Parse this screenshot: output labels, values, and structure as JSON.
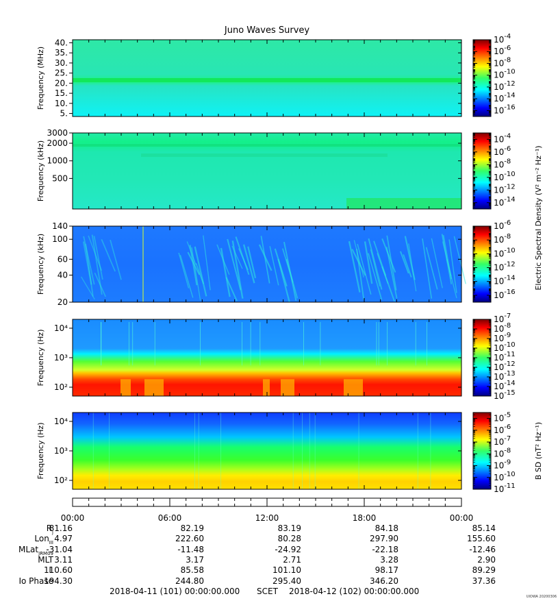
{
  "chart_data": {
    "type": "heatmap",
    "title": "Juno Waves Survey",
    "time_ticks": [
      "00:00",
      "06:00",
      "12:00",
      "18:00",
      "00:00"
    ],
    "panels": [
      {
        "ylabel": "Frequency (MHz)",
        "ytick_labels": [
          "40.",
          "35.",
          "30.",
          "25.",
          "20.",
          "15.",
          "10.",
          "5."
        ],
        "ytick_values": [
          40,
          35,
          30,
          25,
          20,
          15,
          10,
          5
        ],
        "yscale": "linear",
        "ylim": [
          3.5,
          41.5
        ],
        "colorbar_ticks": [
          -4,
          -6,
          -8,
          -10,
          -12,
          -14,
          -16
        ],
        "colorbar_range": [
          -17,
          -4
        ],
        "colorbar_label": ""
      },
      {
        "ylabel": "Frequency (kHz)",
        "ytick_labels": [
          "3000",
          "2000",
          "1000",
          "500"
        ],
        "ytick_values": [
          3000,
          2000,
          1000,
          500
        ],
        "yscale": "log",
        "ylim": [
          150,
          3000
        ],
        "colorbar_ticks": [
          -4,
          -6,
          -8,
          -10,
          -12,
          -14
        ],
        "colorbar_range": [
          -15,
          -3
        ],
        "colorbar_label": "Electric Spectral Density (V² m⁻² Hz⁻¹)"
      },
      {
        "ylabel": "Frequency (kHz)",
        "ytick_labels": [
          "140",
          "100",
          "60",
          "40",
          "20"
        ],
        "ytick_values": [
          140,
          100,
          60,
          40,
          20
        ],
        "yscale": "log",
        "ylim": [
          20,
          140
        ],
        "colorbar_ticks": [
          -6,
          -8,
          -10,
          -12,
          -14,
          -16
        ],
        "colorbar_range": [
          -17,
          -6
        ],
        "colorbar_label": ""
      },
      {
        "ylabel": "Frequency (Hz)",
        "ytick_labels": [
          "10⁴",
          "10³",
          "10²"
        ],
        "ytick_values": [
          10000,
          1000,
          100
        ],
        "yscale": "log",
        "ylim": [
          50,
          20000
        ],
        "colorbar_ticks": [
          -7,
          -8,
          -9,
          -10,
          -11,
          -12,
          -13,
          -14,
          -15
        ],
        "colorbar_range": [
          -15,
          -7
        ],
        "colorbar_label": ""
      },
      {
        "ylabel": "Frequency (Hz)",
        "ytick_labels": [
          "10⁴",
          "10³",
          "10²"
        ],
        "ytick_values": [
          10000,
          1000,
          100
        ],
        "yscale": "log",
        "ylim": [
          50,
          20000
        ],
        "colorbar_ticks": [
          -5,
          -6,
          -7,
          -8,
          -9,
          -10,
          -11
        ],
        "colorbar_range": [
          -11,
          -4.5
        ],
        "colorbar_label": "B SD (nT² Hz⁻¹)"
      }
    ]
  },
  "ephemeris": {
    "labels": [
      "Rj",
      "LonIII",
      "MLatJRM09",
      "MLT",
      "L",
      "Io Phase"
    ],
    "label_display": {
      "Rj": {
        "main": "R",
        "sub": "j"
      },
      "LonIII": {
        "main": "Lon",
        "sub": "III"
      },
      "MLatJRM09": {
        "main": "MLat",
        "sub": "JRM09"
      },
      "MLT": {
        "main": "MLT",
        "sub": ""
      },
      "L": {
        "main": "L",
        "sub": ""
      },
      "Io Phase": {
        "main": "Io Phase",
        "sub": ""
      }
    },
    "rows": [
      [
        "81.16",
        "82.19",
        "83.19",
        "84.18",
        "85.14"
      ],
      [
        "4.97",
        "222.60",
        "80.28",
        "297.90",
        "155.60"
      ],
      [
        "-31.04",
        "-11.48",
        "-24.92",
        "-22.18",
        "-12.46"
      ],
      [
        "3.11",
        "3.17",
        "2.71",
        "3.28",
        "2.90"
      ],
      [
        "110.60",
        "85.58",
        "101.10",
        "98.17",
        "89.29"
      ],
      [
        "194.30",
        "244.80",
        "295.40",
        "346.20",
        "37.36"
      ]
    ]
  },
  "footer": {
    "start": "2018-04-11 (101) 00:00:00.000",
    "scet": "SCET",
    "end": "2018-04-12 (102) 00:00:00.000",
    "stamp": "UIOWA 20200306"
  }
}
